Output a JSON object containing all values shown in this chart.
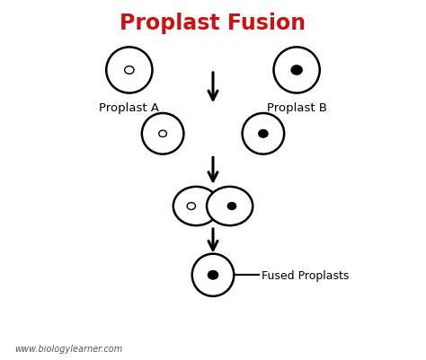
{
  "title": "Proplast Fusion",
  "title_color": "#cc1111",
  "title_fontsize": 17,
  "title_fontweight": "bold",
  "bg_color": "#ffffff",
  "text_color": "#000000",
  "label_A": "Proplast A",
  "label_B": "Proplast B",
  "label_fused": "Fused Proplasts",
  "watermark": "www.biologylearner.com",
  "cell_linewidth": 1.8,
  "cell_color": "white",
  "cell_edge_color": "black"
}
